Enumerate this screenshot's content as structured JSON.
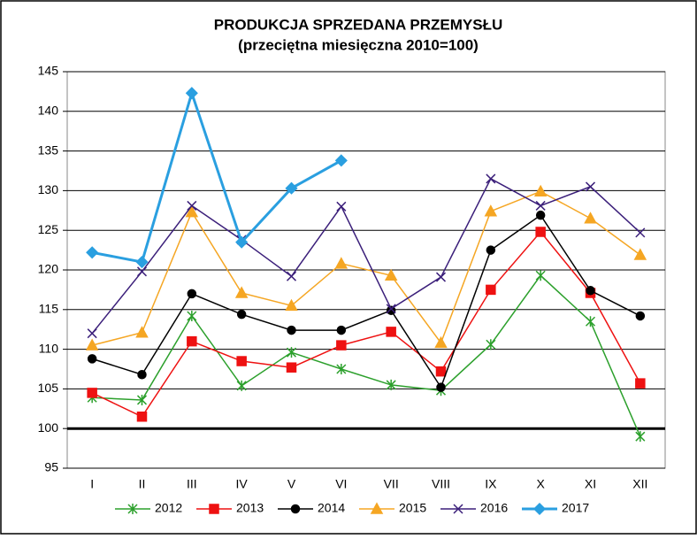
{
  "chart_data": {
    "type": "line",
    "title": "PRODUKCJA SPRZEDANA PRZEMYSŁU",
    "subtitle": "(przeciętna miesięczna 2010=100)",
    "categories": [
      "I",
      "II",
      "III",
      "IV",
      "V",
      "VI",
      "VII",
      "VIII",
      "IX",
      "X",
      "XI",
      "XII"
    ],
    "ylim": [
      95,
      145
    ],
    "yticks": [
      95,
      100,
      105,
      110,
      115,
      120,
      125,
      130,
      135,
      140,
      145
    ],
    "grid": true,
    "reference_line": 100,
    "legend": "bottom",
    "series": [
      {
        "name": "2012",
        "color": "#2ca02c",
        "marker": "star",
        "width": 1.5,
        "values": [
          103.9,
          103.6,
          114.2,
          105.4,
          109.6,
          107.5,
          105.5,
          104.8,
          110.6,
          119.3,
          113.5,
          99.0
        ]
      },
      {
        "name": "2013",
        "color": "#ee1111",
        "marker": "square",
        "width": 1.5,
        "values": [
          104.5,
          101.5,
          111.0,
          108.5,
          107.7,
          110.5,
          112.2,
          107.2,
          117.5,
          124.8,
          117.1,
          105.7
        ]
      },
      {
        "name": "2014",
        "color": "#000000",
        "marker": "circle",
        "width": 1.5,
        "values": [
          108.8,
          106.8,
          117.0,
          114.4,
          112.4,
          112.4,
          114.9,
          105.2,
          122.5,
          126.9,
          117.4,
          114.2
        ]
      },
      {
        "name": "2015",
        "color": "#f5a623",
        "marker": "triangle",
        "width": 1.5,
        "values": [
          110.5,
          112.1,
          127.3,
          117.1,
          115.5,
          120.8,
          119.3,
          110.8,
          127.4,
          129.9,
          126.5,
          121.9
        ]
      },
      {
        "name": "2016",
        "color": "#3b1f7a",
        "marker": "x",
        "width": 1.5,
        "values": [
          112.0,
          119.8,
          128.1,
          123.8,
          119.2,
          128.0,
          115.1,
          119.1,
          131.5,
          128.1,
          130.5,
          124.7
        ]
      },
      {
        "name": "2017",
        "color": "#2a9fe0",
        "marker": "diamond",
        "width": 3,
        "values": [
          122.2,
          121.0,
          142.3,
          123.5,
          130.3,
          133.8,
          null,
          null,
          null,
          null,
          null,
          null
        ]
      }
    ]
  }
}
